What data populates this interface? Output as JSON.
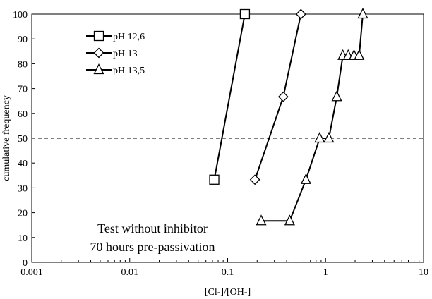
{
  "chart_data": {
    "type": "line",
    "xlabel": "[Cl-]/[OH-]",
    "ylabel": "cumulative frequency",
    "xscale": "log",
    "xlim": [
      0.001,
      10
    ],
    "ylim": [
      0,
      100
    ],
    "x_ticks": [
      0.001,
      0.01,
      0.1,
      1,
      10
    ],
    "x_tick_labels": [
      "0.001",
      "0.01",
      "0.1",
      "1",
      "10"
    ],
    "y_ticks": [
      0,
      10,
      20,
      30,
      40,
      50,
      60,
      70,
      80,
      90,
      100
    ],
    "y_tick_labels": [
      "0",
      "10",
      "20",
      "30",
      "40",
      "50",
      "60",
      "70",
      "80",
      "90",
      "100"
    ],
    "grid": false,
    "legend_position": "top-left",
    "reference_line": {
      "y": 50,
      "style": "dashed"
    },
    "series": [
      {
        "name": "pH 12,6",
        "marker": "square",
        "points": [
          {
            "x": 0.073,
            "y": 33.3
          },
          {
            "x": 0.15,
            "y": 100
          }
        ]
      },
      {
        "name": "pH 13",
        "marker": "diamond",
        "points": [
          {
            "x": 0.19,
            "y": 33.3
          },
          {
            "x": 0.37,
            "y": 66.7
          },
          {
            "x": 0.56,
            "y": 100
          }
        ]
      },
      {
        "name": "pH 13,5",
        "marker": "triangle",
        "points": [
          {
            "x": 0.22,
            "y": 16.7
          },
          {
            "x": 0.43,
            "y": 16.7
          },
          {
            "x": 0.63,
            "y": 33.3
          },
          {
            "x": 0.87,
            "y": 50
          },
          {
            "x": 1.08,
            "y": 50
          },
          {
            "x": 1.3,
            "y": 66.7
          },
          {
            "x": 1.5,
            "y": 83.3
          },
          {
            "x": 1.7,
            "y": 83.3
          },
          {
            "x": 1.95,
            "y": 83.3
          },
          {
            "x": 2.2,
            "y": 83.3
          },
          {
            "x": 2.4,
            "y": 100
          }
        ]
      }
    ],
    "annotations": [
      "Test without inhibitor",
      "70 hours pre-passivation"
    ]
  }
}
